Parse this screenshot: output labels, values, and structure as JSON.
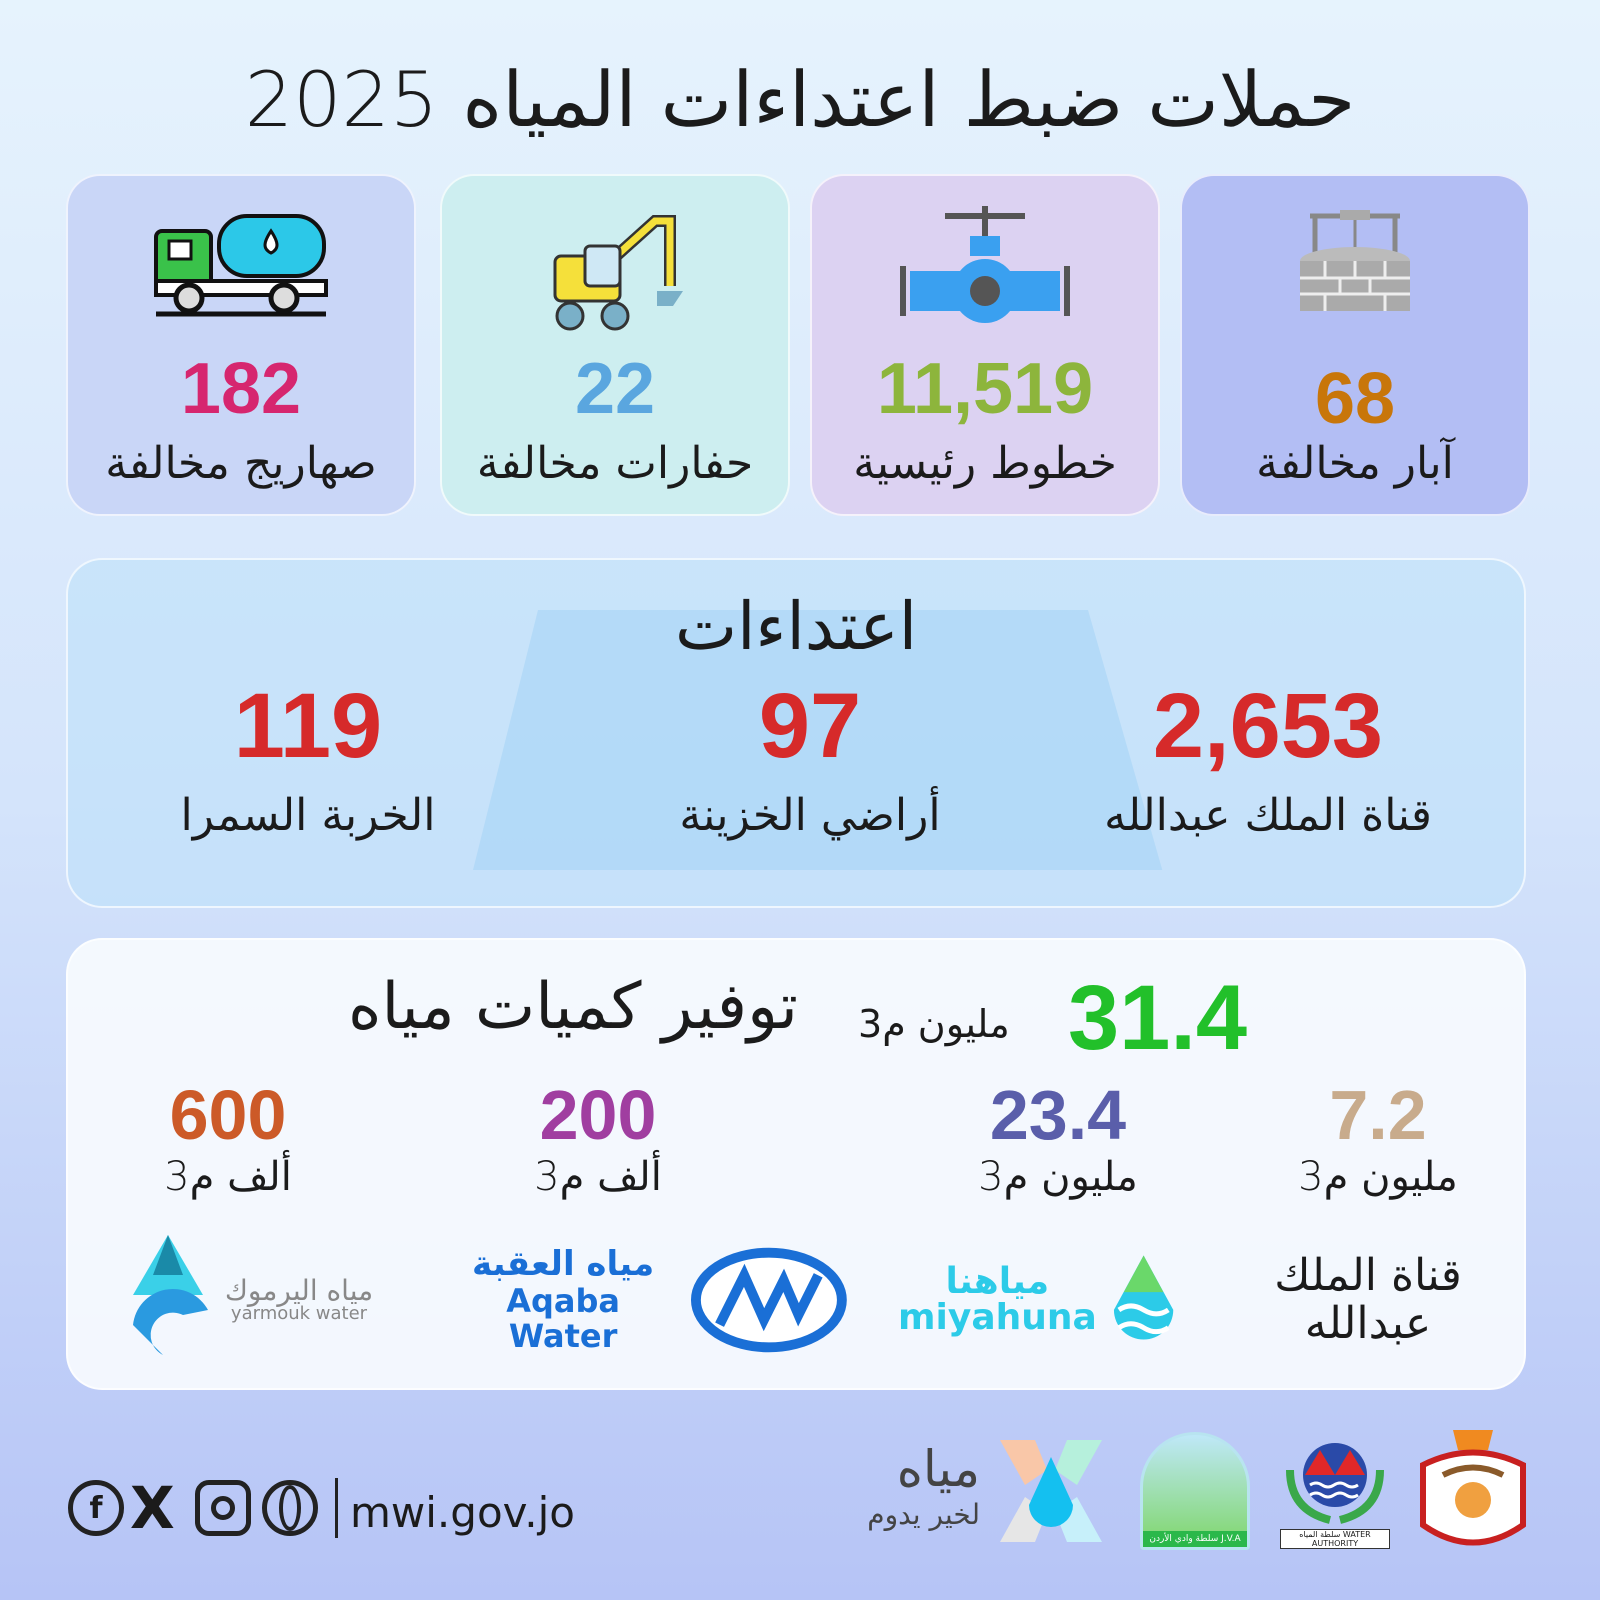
{
  "title": "حملات ضبط اعتداءات المياه 2025",
  "cards": [
    {
      "icon": "well-icon",
      "value": "68",
      "label": "آبار مخالفة",
      "color": "#c8760a",
      "bg": "#b3bef4"
    },
    {
      "icon": "pipe-valve-icon",
      "value": "11,519",
      "label": "خطوط رئيسية",
      "color": "#8db53c",
      "bg": "#dcd2f2"
    },
    {
      "icon": "excavator-icon",
      "value": "22",
      "label": "حفارات مخالفة",
      "color": "#5aa6df",
      "bg": "#cdeef0"
    },
    {
      "icon": "water-tanker-icon",
      "value": "182",
      "label": "صهاريج مخالفة",
      "color": "#d6266f",
      "bg": "#c9d6f7"
    }
  ],
  "attacks": {
    "heading": "اعتداءات",
    "items": [
      {
        "value": "2,653",
        "label": "قناة الملك عبدالله"
      },
      {
        "value": "97",
        "label": "أراضي الخزينة"
      },
      {
        "value": "119",
        "label": "الخربة السمرا"
      }
    ],
    "color": "#d62a2a"
  },
  "savings": {
    "heading": "توفير كميات مياه",
    "total_value": "31.4",
    "total_unit": "مليون م3",
    "total_color": "#22c02a",
    "items": [
      {
        "value": "7.2",
        "unit": "مليون م3",
        "color": "#c8ab8c",
        "entity": "قناة الملك عبدالله"
      },
      {
        "value": "23.4",
        "unit": "مليون م3",
        "color": "#5a5eaa",
        "entity": "miyahuna",
        "entity_ar": "مياهنا"
      },
      {
        "value": "200",
        "unit": "ألف م3",
        "color": "#a03ea0",
        "entity": "Aqaba Water",
        "entity_ar": "مياه العقبة"
      },
      {
        "value": "600",
        "unit": "ألف م3",
        "color": "#cc5a28",
        "entity": "yarmouk water",
        "entity_ar": "مياه اليرموك"
      }
    ]
  },
  "footer": {
    "url": "mwi.gov.jo",
    "social": [
      "facebook-icon",
      "x-icon",
      "instagram-icon",
      "globe-icon"
    ],
    "brand": "مياه",
    "slogan": "لخير يدوم",
    "logos": [
      "jordan-coat-of-arms",
      "water-authority-logo",
      "jva-logo"
    ],
    "wa_text": "سلطة المياه WATER AUTHORITY",
    "jva_text": "سلطة وادي الأردن J.V.A"
  }
}
